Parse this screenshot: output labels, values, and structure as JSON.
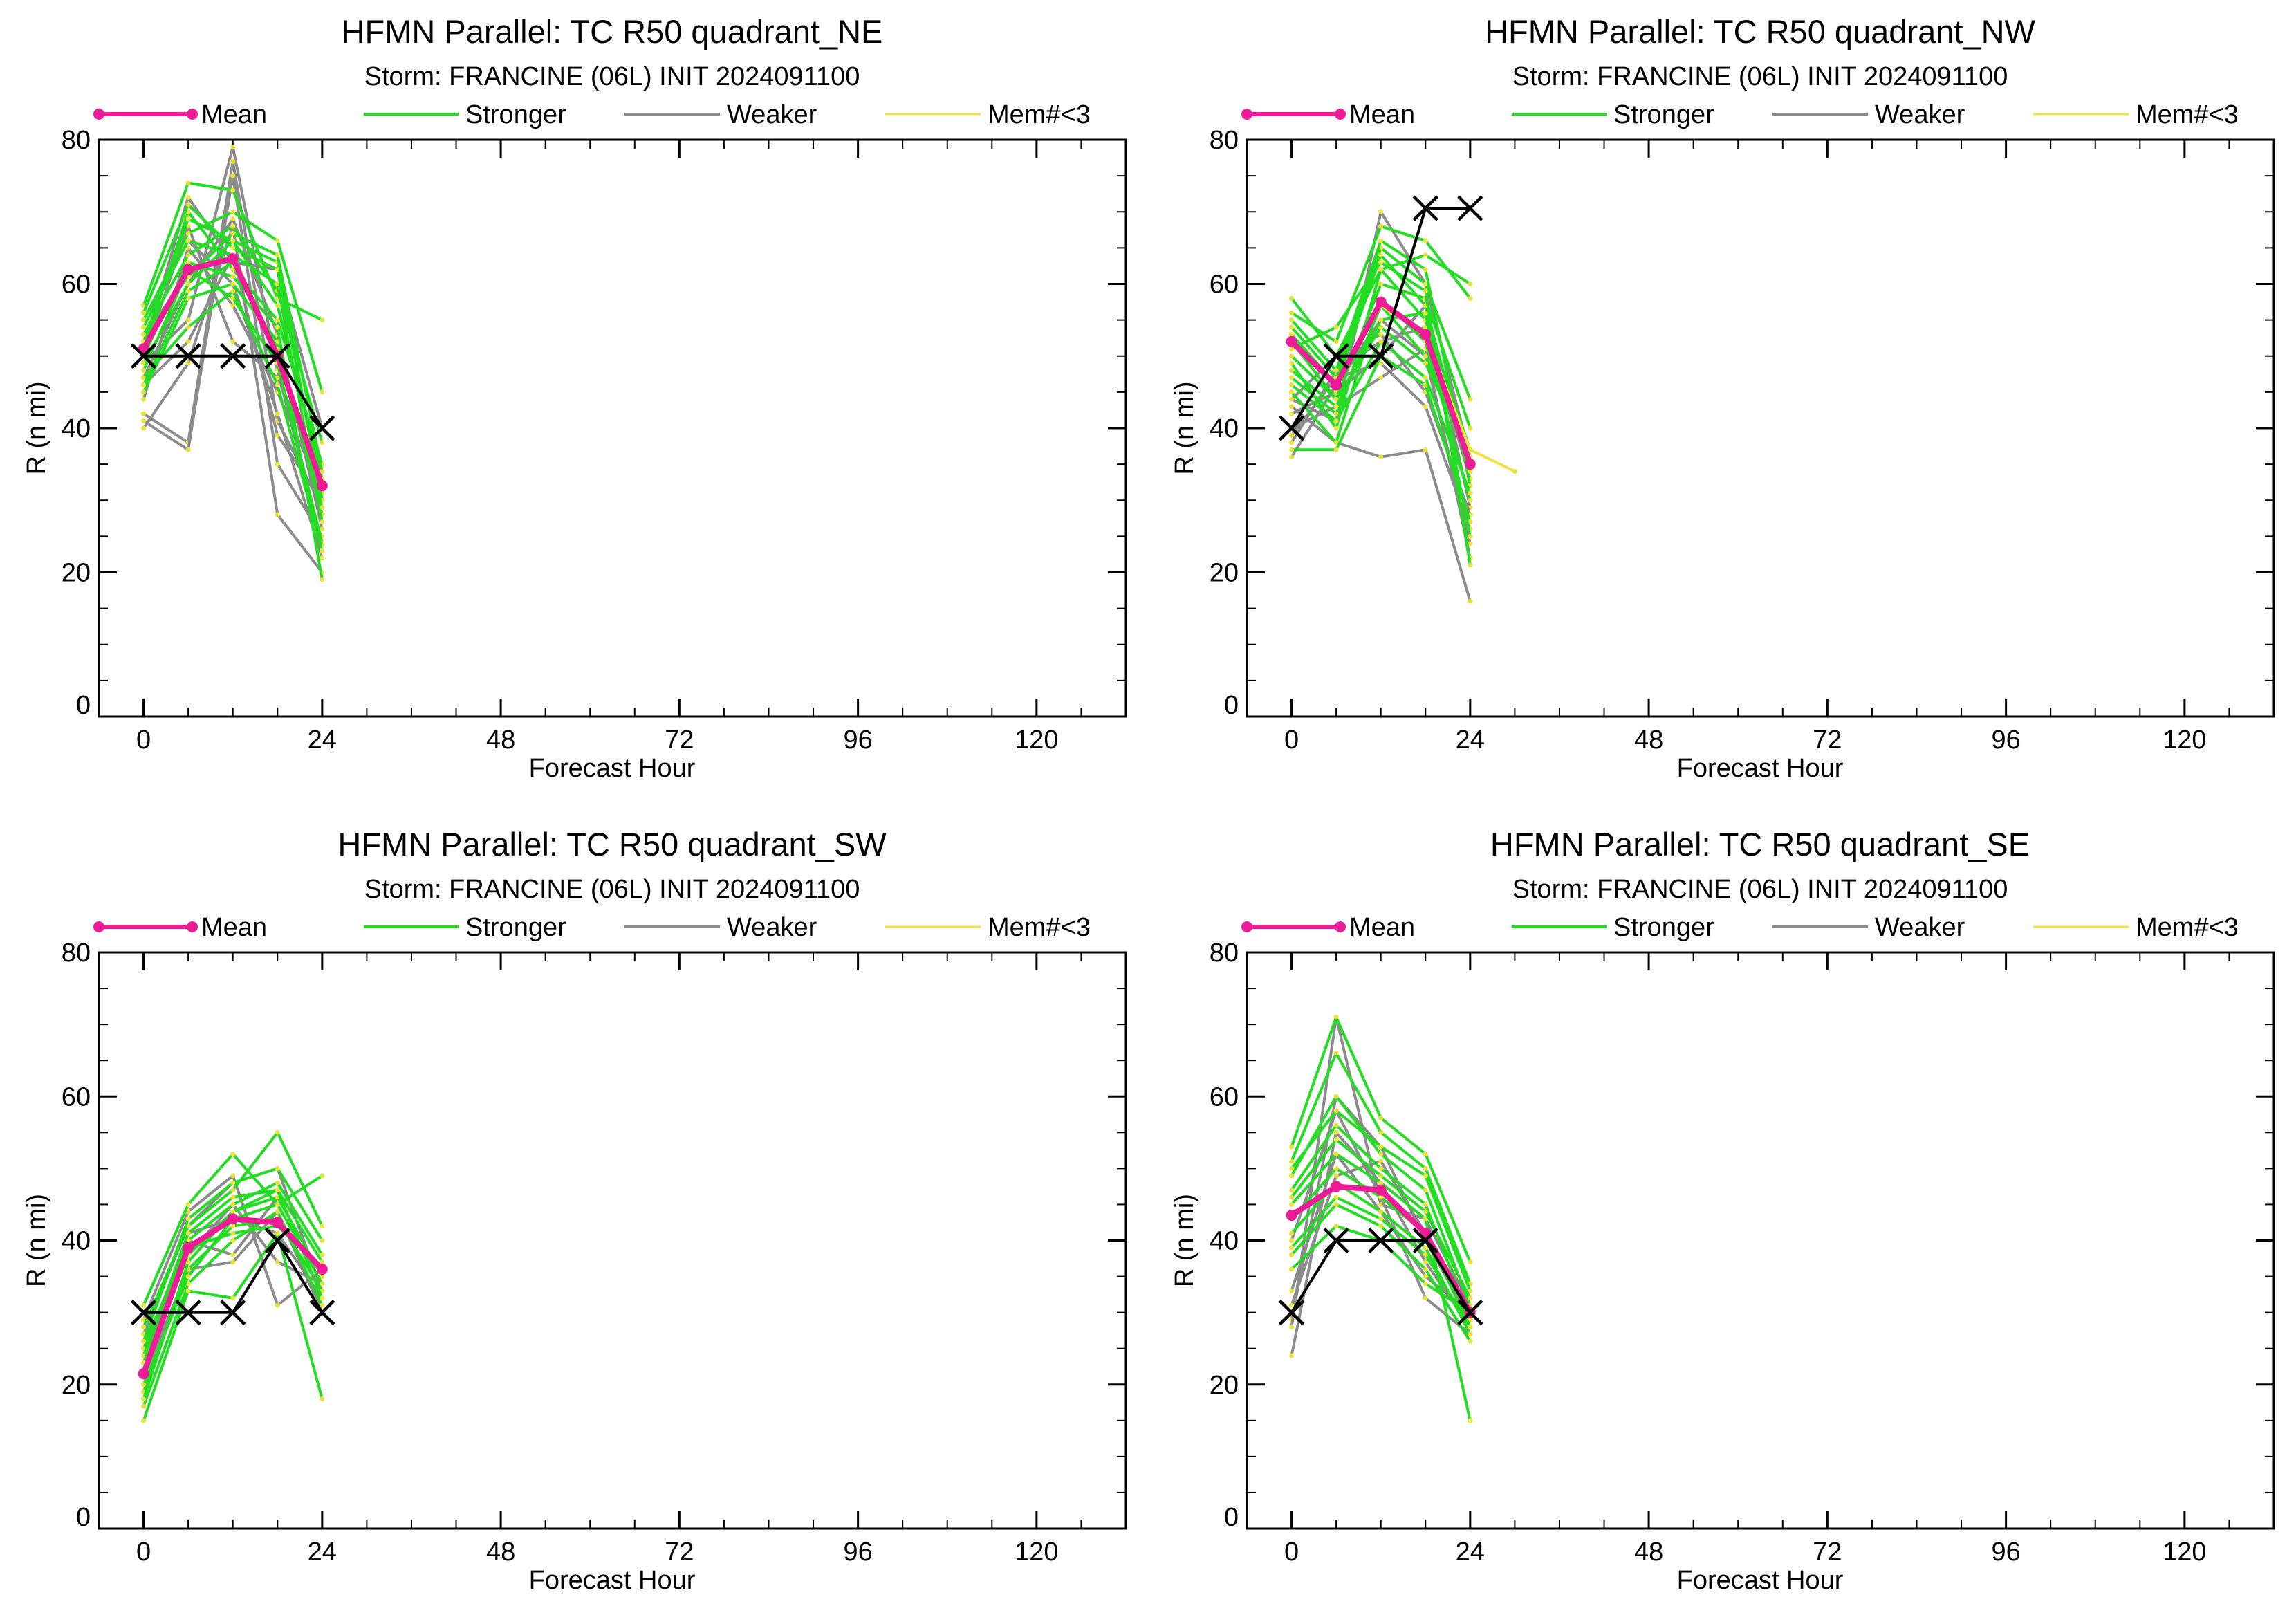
{
  "figure": {
    "panels_order": [
      "NE",
      "NW",
      "SW",
      "SE"
    ]
  },
  "colors": {
    "mean": "#ee1b98",
    "stronger": "#22dd22",
    "weaker": "#8c8c8c",
    "mem": "#f2e040",
    "member_marker": "#e8e23a",
    "best_track": "#000000",
    "axes": "#000000"
  },
  "chart_data": [
    {
      "id": "NE",
      "type": "line",
      "title": "HFMN Parallel: TC  R50 quadrant_NE",
      "subtitle": "Storm: FRANCINE (06L) INIT 2024091100",
      "xlabel": "Forecast Hour",
      "ylabel": "R (n mi)",
      "xlim": [
        -6,
        132
      ],
      "ylim": [
        0,
        80
      ],
      "xticks": [
        0,
        24,
        48,
        72,
        96,
        120
      ],
      "xtick_labels": [
        "0",
        "24",
        "48",
        "72",
        "96",
        "120"
      ],
      "yticks": [
        0,
        20,
        40,
        60,
        80
      ],
      "ytick_labels": [
        "0",
        "20",
        "40",
        "60",
        "80"
      ],
      "legend": [
        "Mean",
        "Stronger",
        "Weaker",
        "Mem#<3"
      ],
      "legend_position": "top",
      "grid": false,
      "x": [
        0,
        6,
        12,
        18,
        24
      ],
      "mean": [
        51,
        62,
        63.5,
        50,
        32
      ],
      "best_track": [
        50,
        50,
        50,
        50,
        40
      ],
      "stronger": [
        [
          57,
          74,
          73,
          58,
          55
        ],
        [
          55,
          67,
          70,
          66,
          45
        ],
        [
          53,
          64,
          68,
          59,
          38
        ],
        [
          51,
          70,
          62,
          55,
          35
        ],
        [
          49,
          60,
          66,
          63,
          30
        ],
        [
          45,
          58,
          60,
          52,
          28
        ],
        [
          54,
          66,
          64,
          60,
          27
        ],
        [
          48,
          62,
          58,
          49,
          24
        ],
        [
          52,
          69,
          66,
          57,
          33
        ],
        [
          56,
          71,
          65,
          62,
          30
        ],
        [
          47,
          54,
          59,
          46,
          23
        ],
        [
          50,
          63,
          61,
          54,
          19
        ],
        [
          53,
          61,
          67,
          64,
          34
        ],
        [
          46,
          59,
          63,
          51,
          29
        ]
      ],
      "weaker": [
        [
          51,
          72,
          63,
          62,
          40
        ],
        [
          49,
          55,
          79,
          48,
          24
        ],
        [
          42,
          38,
          77,
          41,
          29
        ],
        [
          41,
          37,
          75,
          35,
          25
        ],
        [
          40,
          49,
          68,
          28,
          20
        ],
        [
          44,
          65,
          57,
          45,
          31
        ],
        [
          50,
          68,
          52,
          47,
          33
        ],
        [
          47,
          60,
          69,
          53,
          26
        ],
        [
          55,
          66,
          60,
          42,
          22
        ],
        [
          46,
          52,
          64,
          39,
          30
        ]
      ],
      "mem_lt3": []
    },
    {
      "id": "NW",
      "type": "line",
      "title": "HFMN Parallel: TC  R50 quadrant_NW",
      "subtitle": "Storm: FRANCINE (06L) INIT 2024091100",
      "xlabel": "Forecast Hour",
      "ylabel": "R (n mi)",
      "xlim": [
        -6,
        132
      ],
      "ylim": [
        0,
        80
      ],
      "xticks": [
        0,
        24,
        48,
        72,
        96,
        120
      ],
      "xtick_labels": [
        "0",
        "24",
        "48",
        "72",
        "96",
        "120"
      ],
      "yticks": [
        0,
        20,
        40,
        60,
        80
      ],
      "ytick_labels": [
        "0",
        "20",
        "40",
        "60",
        "80"
      ],
      "legend": [
        "Mean",
        "Stronger",
        "Weaker",
        "Mem#<3"
      ],
      "legend_position": "top",
      "grid": false,
      "x": [
        0,
        6,
        12,
        18,
        24
      ],
      "mean": [
        52,
        46,
        57.5,
        53,
        35
      ],
      "best_track": [
        40,
        50,
        50,
        70.5,
        70.5
      ],
      "stronger": [
        [
          58,
          50,
          62,
          64,
          60
        ],
        [
          56,
          52,
          68,
          66,
          58
        ],
        [
          54,
          47,
          65,
          60,
          44
        ],
        [
          52,
          44,
          60,
          58,
          40
        ],
        [
          49,
          40,
          62,
          55,
          37
        ],
        [
          47,
          42,
          57,
          50,
          35
        ],
        [
          55,
          48,
          66,
          62,
          32
        ],
        [
          45,
          38,
          58,
          52,
          30
        ],
        [
          50,
          44,
          54,
          49,
          36
        ],
        [
          53,
          46,
          64,
          57,
          34
        ],
        [
          37,
          37,
          50,
          46,
          27
        ],
        [
          48,
          43,
          55,
          56,
          25
        ],
        [
          51,
          54,
          63,
          59,
          21
        ],
        [
          46,
          41,
          52,
          47,
          31
        ]
      ],
      "weaker": [
        [
          44,
          41,
          70,
          60,
          36
        ],
        [
          43,
          38,
          36,
          37,
          16
        ],
        [
          36,
          46,
          55,
          50,
          24
        ],
        [
          42,
          45,
          50,
          57,
          29
        ],
        [
          38,
          48,
          52,
          54,
          33
        ],
        [
          40,
          43,
          47,
          51,
          22
        ],
        [
          44,
          50,
          53,
          45,
          28
        ],
        [
          39,
          47,
          49,
          43,
          26
        ]
      ],
      "mem_lt3": [
        {
          "x": [
            0,
            6,
            12,
            18,
            24,
            30
          ],
          "y": [
            52,
            46,
            57,
            53,
            37,
            34
          ]
        }
      ]
    },
    {
      "id": "SW",
      "type": "line",
      "title": "HFMN Parallel: TC  R50 quadrant_SW",
      "subtitle": "Storm: FRANCINE (06L) INIT 2024091100",
      "xlabel": "Forecast Hour",
      "ylabel": "R (n mi)",
      "xlim": [
        -6,
        132
      ],
      "ylim": [
        0,
        80
      ],
      "xticks": [
        0,
        24,
        48,
        72,
        96,
        120
      ],
      "xtick_labels": [
        "0",
        "24",
        "48",
        "72",
        "96",
        "120"
      ],
      "yticks": [
        0,
        20,
        40,
        60,
        80
      ],
      "ytick_labels": [
        "0",
        "20",
        "40",
        "60",
        "80"
      ],
      "legend": [
        "Mean",
        "Stronger",
        "Weaker",
        "Mem#<3"
      ],
      "legend_position": "top",
      "grid": false,
      "x": [
        0,
        6,
        12,
        18,
        24
      ],
      "mean": [
        21.5,
        39,
        43,
        42.5,
        36
      ],
      "best_track": [
        30,
        30,
        30,
        40,
        30
      ],
      "stronger": [
        [
          31,
          45,
          52,
          45,
          49
        ],
        [
          28,
          42,
          47,
          55,
          42
        ],
        [
          25,
          40,
          45,
          48,
          38
        ],
        [
          22,
          38,
          44,
          46,
          35
        ],
        [
          19,
          36,
          42,
          43,
          33
        ],
        [
          17,
          34,
          40,
          44,
          31
        ],
        [
          15,
          33,
          32,
          41,
          18
        ],
        [
          26,
          43,
          48,
          50,
          40
        ],
        [
          24,
          41,
          46,
          47,
          37
        ],
        [
          20,
          35,
          43,
          45,
          34
        ],
        [
          23,
          39,
          41,
          42,
          36
        ],
        [
          18,
          37,
          44,
          47,
          32
        ]
      ],
      "weaker": [
        [
          29,
          44,
          49,
          31,
          36
        ],
        [
          27,
          42,
          48,
          50,
          33
        ],
        [
          24,
          40,
          38,
          46,
          35
        ],
        [
          21,
          36,
          37,
          44,
          30
        ],
        [
          26,
          38,
          45,
          37,
          34
        ],
        [
          23,
          41,
          43,
          41,
          32
        ]
      ],
      "mem_lt3": []
    },
    {
      "id": "SE",
      "type": "line",
      "title": "HFMN Parallel: TC  R50 quadrant_SE",
      "subtitle": "Storm: FRANCINE (06L) INIT 2024091100",
      "xlabel": "Forecast Hour",
      "ylabel": "R (n mi)",
      "xlim": [
        -6,
        132
      ],
      "ylim": [
        0,
        80
      ],
      "xticks": [
        0,
        24,
        48,
        72,
        96,
        120
      ],
      "xtick_labels": [
        "0",
        "24",
        "48",
        "72",
        "96",
        "120"
      ],
      "yticks": [
        0,
        20,
        40,
        60,
        80
      ],
      "ytick_labels": [
        "0",
        "20",
        "40",
        "60",
        "80"
      ],
      "legend": [
        "Mean",
        "Stronger",
        "Weaker",
        "Mem#<3"
      ],
      "legend_position": "top",
      "grid": false,
      "x": [
        0,
        6,
        12,
        18,
        24
      ],
      "mean": [
        43.5,
        47.5,
        47,
        41,
        30
      ],
      "best_track": [
        30,
        40,
        40,
        40,
        30
      ],
      "stronger": [
        [
          53,
          71,
          57,
          52,
          37
        ],
        [
          51,
          66,
          55,
          50,
          34
        ],
        [
          49,
          60,
          52,
          47,
          31
        ],
        [
          47,
          56,
          50,
          45,
          29
        ],
        [
          45,
          52,
          48,
          43,
          15
        ],
        [
          43,
          50,
          46,
          41,
          28
        ],
        [
          41,
          48,
          44,
          39,
          27
        ],
        [
          38,
          45,
          42,
          36,
          26
        ],
        [
          36,
          42,
          40,
          34,
          30
        ],
        [
          50,
          58,
          53,
          49,
          33
        ],
        [
          46,
          54,
          49,
          44,
          32
        ],
        [
          39,
          46,
          43,
          38,
          28
        ]
      ],
      "weaker": [
        [
          29,
          60,
          53,
          40,
          29
        ],
        [
          28,
          71,
          45,
          43,
          31
        ],
        [
          24,
          55,
          48,
          37,
          28
        ],
        [
          33,
          52,
          44,
          35,
          30
        ],
        [
          40,
          58,
          46,
          32,
          27
        ],
        [
          31,
          49,
          51,
          41,
          29
        ]
      ],
      "mem_lt3": []
    }
  ]
}
